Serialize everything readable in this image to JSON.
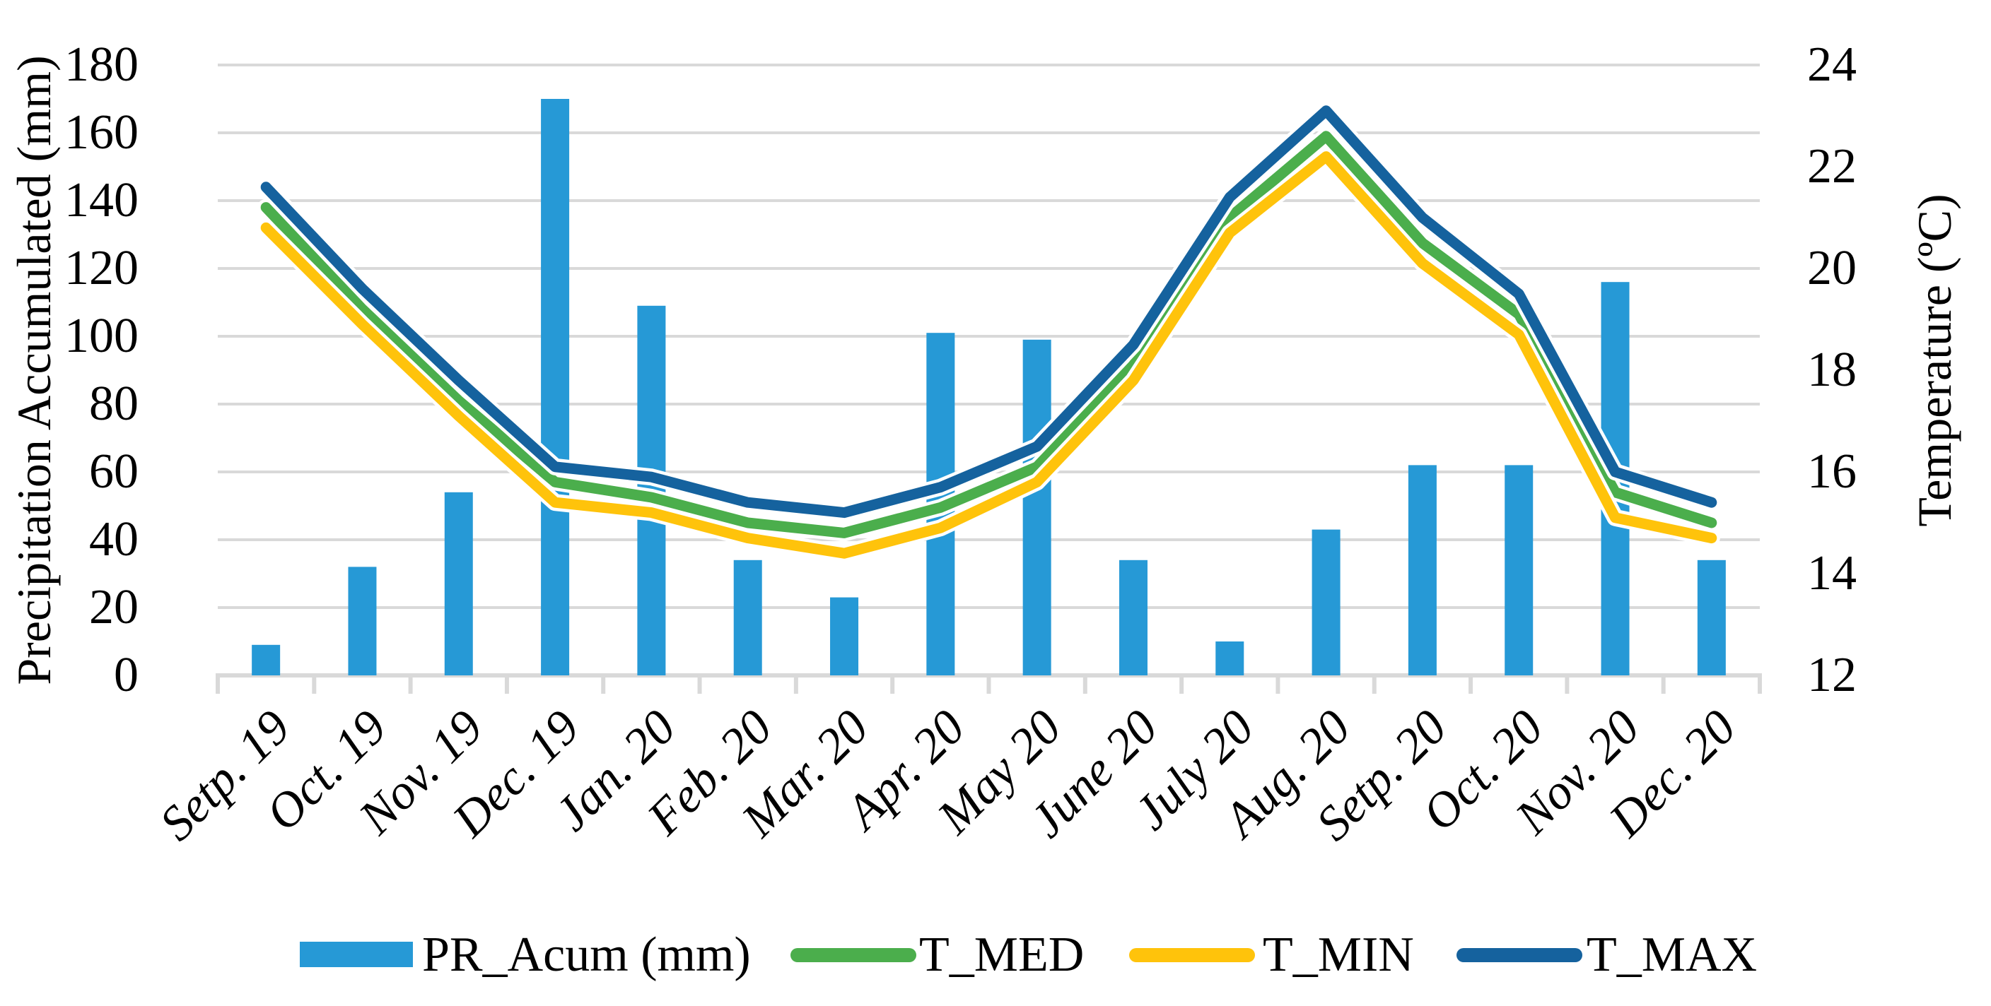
{
  "chart_data": {
    "type": "combo-bar-line",
    "title": "",
    "categories": [
      "Setp. 19",
      "Oct. 19",
      "Nov. 19",
      "Dec. 19",
      "Jan. 20",
      "Feb. 20",
      "Mar. 20",
      "Apr. 20",
      "May 20",
      "June 20",
      "July 20",
      "Aug. 20",
      "Setp. 20",
      "Oct. 20",
      "Nov. 20",
      "Dec. 20"
    ],
    "series": [
      {
        "name": "PR_Acum (mm)",
        "type": "bar",
        "axis": "left",
        "color": "#2699D6",
        "values": [
          9,
          32,
          54,
          170,
          109,
          34,
          23,
          101,
          99,
          34,
          10,
          43,
          62,
          62,
          116,
          34
        ]
      },
      {
        "name": "T_MED",
        "type": "line",
        "axis": "right",
        "color": "#4BAE4C",
        "values": [
          21.2,
          19.2,
          17.4,
          15.8,
          15.5,
          15.0,
          14.8,
          15.3,
          16.1,
          18.1,
          21.0,
          22.6,
          20.5,
          19.1,
          15.6,
          15.0
        ]
      },
      {
        "name": "T_MIN",
        "type": "line",
        "axis": "right",
        "color": "#FFC30B",
        "values": [
          20.8,
          18.9,
          17.1,
          15.4,
          15.2,
          14.7,
          14.4,
          14.9,
          15.8,
          17.8,
          20.7,
          22.2,
          20.1,
          18.7,
          15.1,
          14.7
        ]
      },
      {
        "name": "T_MAX",
        "type": "line",
        "axis": "right",
        "color": "#15629E",
        "values": [
          21.6,
          19.6,
          17.8,
          16.1,
          15.9,
          15.4,
          15.2,
          15.7,
          16.5,
          18.5,
          21.4,
          23.1,
          21.0,
          19.5,
          16.0,
          15.4
        ]
      }
    ],
    "left_axis": {
      "title": "Precipitation Accumulated (mm)",
      "min": 0,
      "max": 180,
      "step": 20,
      "tick_labels": [
        "0",
        "20",
        "40",
        "60",
        "80",
        "100",
        "120",
        "140",
        "160",
        "180"
      ]
    },
    "right_axis": {
      "title": "Temperature (ºC)",
      "min": 12,
      "max": 24,
      "step": 2,
      "tick_labels": [
        "12",
        "14",
        "16",
        "18",
        "20",
        "22",
        "24"
      ]
    },
    "grid": true,
    "gridline_color": "#D9D9D9",
    "axis_line_color": "#D9D9D9",
    "legend_position": "bottom"
  }
}
